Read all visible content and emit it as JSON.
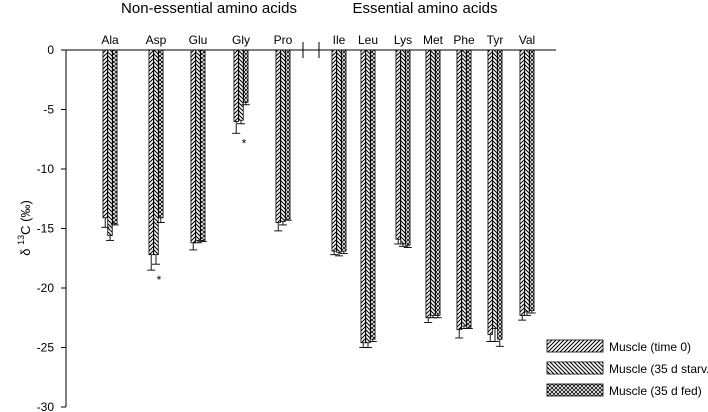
{
  "chart_data": {
    "type": "bar",
    "group_titles": [
      "Non-essential amino acids",
      "Essential amino acids"
    ],
    "groups": [
      {
        "title_index": 0,
        "categories": [
          "Ala",
          "Asp",
          "Glu",
          "Gly",
          "Pro"
        ]
      },
      {
        "title_index": 1,
        "categories": [
          "Ile",
          "Leu",
          "Lys",
          "Met",
          "Phe",
          "Tyr",
          "Val"
        ]
      }
    ],
    "categories": [
      "Ala",
      "Asp",
      "Glu",
      "Gly",
      "Pro",
      "Ile",
      "Leu",
      "Lys",
      "Met",
      "Phe",
      "Tyr",
      "Val"
    ],
    "series": [
      {
        "name": "Muscle (time 0)",
        "pattern": "forward-hatch",
        "values": [
          -14.1,
          -17.2,
          -16.2,
          -6.0,
          -14.5,
          -16.9,
          -24.6,
          -15.9,
          -22.5,
          -23.5,
          -23.9,
          -22.3
        ],
        "errors": [
          0.8,
          1.3,
          0.6,
          1.0,
          0.7,
          0.3,
          0.4,
          0.4,
          0.4,
          0.7,
          0.6,
          0.4
        ]
      },
      {
        "name": "Muscle (35 d starv.)",
        "pattern": "back-hatch",
        "values": [
          -15.6,
          -17.2,
          -16.0,
          -5.9,
          -14.4,
          -17.0,
          -24.6,
          -16.3,
          -22.3,
          -23.2,
          -23.4,
          -22.0
        ],
        "errors": [
          0.4,
          0.8,
          0.2,
          0.3,
          0.3,
          0.3,
          0.4,
          0.2,
          0.2,
          0.2,
          1.1,
          0.3
        ]
      },
      {
        "name": "Muscle (35 d fed)",
        "pattern": "cross-hatch",
        "values": [
          -14.6,
          -14.1,
          -16.0,
          -4.4,
          -14.2,
          -16.9,
          -24.3,
          -16.4,
          -22.3,
          -23.3,
          -24.3,
          -21.9
        ],
        "errors": [
          0.1,
          0.4,
          0.1,
          0.2,
          0.1,
          0.2,
          0.2,
          0.2,
          0.2,
          0.1,
          0.6,
          0.2
        ]
      }
    ],
    "significance_marks": [
      {
        "category": "Asp",
        "symbol": "*"
      },
      {
        "category": "Gly",
        "symbol": "*"
      }
    ],
    "ylabel": {
      "delta": "δ",
      "superscript": "13",
      "rest": "C (‰)"
    },
    "ylim": [
      -30,
      0
    ],
    "yticks": [
      0,
      -5,
      -10,
      -15,
      -20,
      -25,
      -30
    ],
    "ytick_labels": [
      "0",
      "-5",
      "-10",
      "-15",
      "-20",
      "-25",
      "-30"
    ],
    "grid": false,
    "legend_position": "bottom-right",
    "colors": {
      "bar_stroke": "#000000",
      "axis": "#000000",
      "background": "#ffffff"
    }
  }
}
